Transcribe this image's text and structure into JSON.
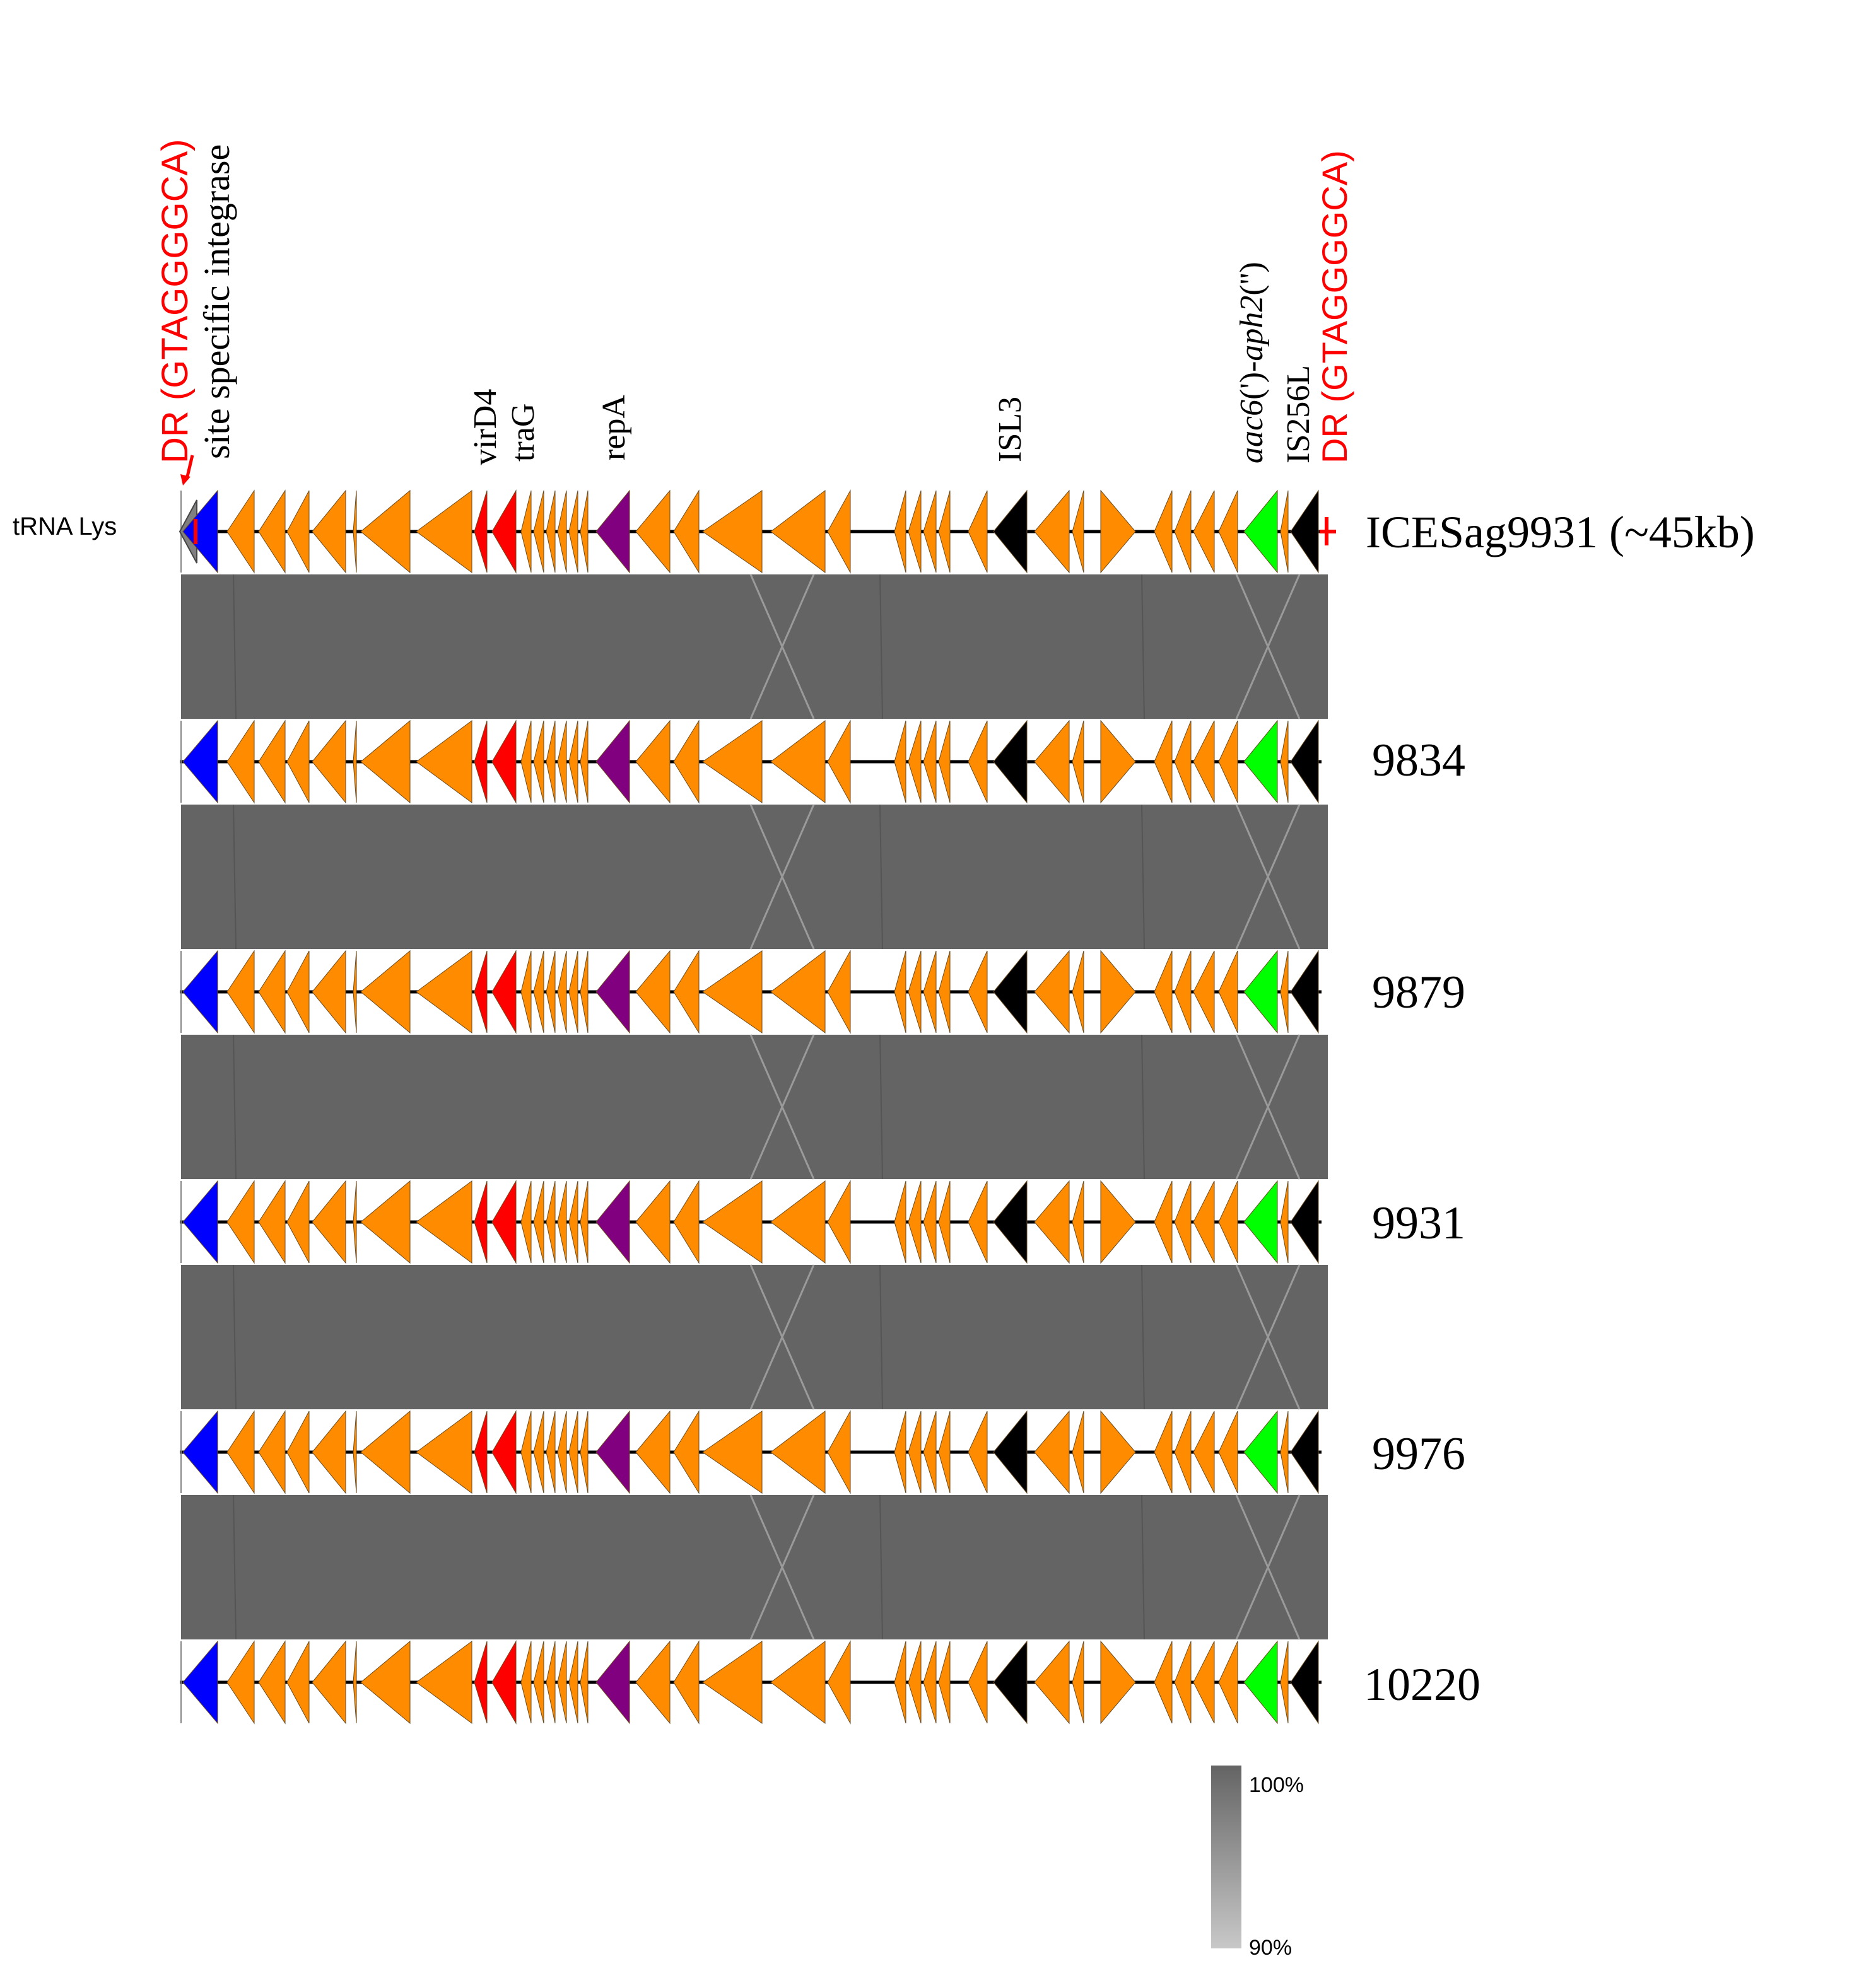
{
  "figure": {
    "left_feature_label": "tRNA Lys",
    "colors": {
      "integrase": "#0000ff",
      "default_gene": "#ff8c00",
      "conjugation": "#ff0000",
      "repA": "#800080",
      "insertion_sequence": "#000000",
      "resistance": "#00ff00",
      "trna": "#808080",
      "direct_repeat": "#ff0000",
      "similarity_band": "#646464"
    },
    "gene_annotations": [
      {
        "id": "dr-left",
        "text": "DR (GTAGGGGCA)",
        "color": "#ff0000"
      },
      {
        "id": "integrase",
        "text": "site specific integrase",
        "color": "#000000"
      },
      {
        "id": "virD4",
        "text": "virD4",
        "color": "#000000"
      },
      {
        "id": "traG",
        "text": "traG",
        "color": "#000000"
      },
      {
        "id": "repA",
        "text": "repA",
        "color": "#000000"
      },
      {
        "id": "isl3",
        "text": "ISL3",
        "color": "#000000"
      },
      {
        "id": "aac6",
        "text": "aac6(')-aph2('')",
        "italic_parts": [
          "aac6",
          "aph2"
        ],
        "color": "#000000"
      },
      {
        "id": "is256l",
        "text": "IS256L",
        "color": "#000000"
      },
      {
        "id": "dr-right",
        "text": "DR (GTAGGGGCA)",
        "color": "#ff0000"
      }
    ],
    "tracks": [
      {
        "label": "ICESag9931 (~45kb)"
      },
      {
        "label": "9834"
      },
      {
        "label": "9879"
      },
      {
        "label": "9931"
      },
      {
        "label": "9976"
      },
      {
        "label": "10220"
      }
    ],
    "legend": {
      "max_label": "100%",
      "min_label": "90%",
      "max_color": "#646464",
      "min_color": "#c8c8c8"
    }
  }
}
